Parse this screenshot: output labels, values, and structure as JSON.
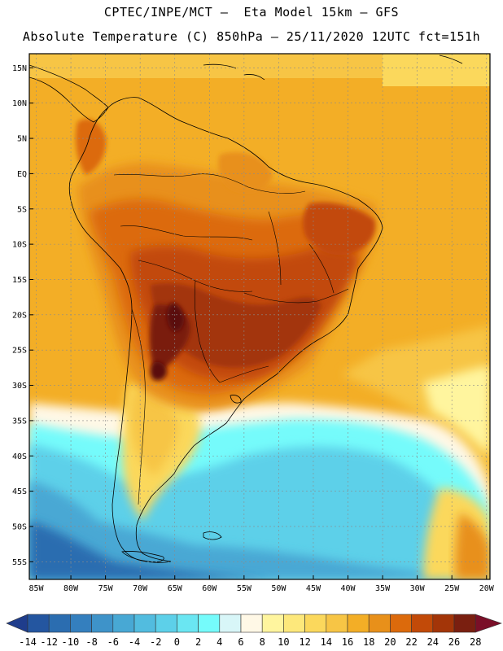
{
  "header": {
    "line1": "CPTEC/INPE/MCT –  Eta Model 15km – GFS",
    "line2": "Absolute Temperature (C) 850hPa – 25/11/2020 12UTC fct=151h"
  },
  "axes": {
    "lat_labels": [
      "15N",
      "10N",
      "5N",
      "EQ",
      "5S",
      "10S",
      "15S",
      "20S",
      "25S",
      "30S",
      "35S",
      "40S",
      "45S",
      "50S",
      "55S"
    ],
    "lat_values": [
      15,
      10,
      5,
      0,
      -5,
      -10,
      -15,
      -20,
      -25,
      -30,
      -35,
      -40,
      -45,
      -50,
      -55
    ],
    "lon_labels": [
      "85W",
      "80W",
      "75W",
      "70W",
      "65W",
      "60W",
      "55W",
      "50W",
      "45W",
      "40W",
      "35W",
      "30W",
      "25W",
      "20W"
    ],
    "lon_values": [
      -85,
      -80,
      -75,
      -70,
      -65,
      -60,
      -55,
      -50,
      -45,
      -40,
      -35,
      -30,
      -25,
      -20
    ],
    "lon_range": [
      -86,
      -19.5
    ],
    "lat_range": [
      -57.5,
      17
    ]
  },
  "colorbar": {
    "labels": [
      "-14",
      "-12",
      "-10",
      "-8",
      "-6",
      "-4",
      "-2",
      "0",
      "2",
      "4",
      "6",
      "8",
      "10",
      "12",
      "14",
      "16",
      "18",
      "20",
      "22",
      "24",
      "26",
      "28"
    ],
    "colors": [
      "#1f3d8c",
      "#2456a0",
      "#2b6db0",
      "#347fbe",
      "#3e93c9",
      "#48a8d4",
      "#52bcdf",
      "#5dd0e9",
      "#6ae6f2",
      "#75fbfb",
      "#d8f6f8",
      "#fff8e6",
      "#fff59e",
      "#fde87b",
      "#fbd85c",
      "#f7c545",
      "#f3ae26",
      "#e8901a",
      "#dc6a0c",
      "#c24a08",
      "#a33508",
      "#7a1f10",
      "#7a0f28"
    ]
  },
  "map_colors": {
    "ocean_cold_deep": "#2b6db0",
    "ocean_cold": "#48a8d4",
    "ocean_cool": "#5dd0e9",
    "ocean_aqua": "#75fbfb",
    "ocean_pale": "#d8f6f8",
    "cream": "#fff8e6",
    "pale_yellow": "#fff59e",
    "yellow": "#fbd85c",
    "light_orange": "#f7c545",
    "orange": "#f3ae26",
    "deep_orange": "#e8901a",
    "red_orange": "#dc6a0c",
    "brown_red": "#c24a08",
    "brown": "#a33508",
    "dark_brown": "#7a1f10",
    "darkest": "#5a0a10"
  }
}
